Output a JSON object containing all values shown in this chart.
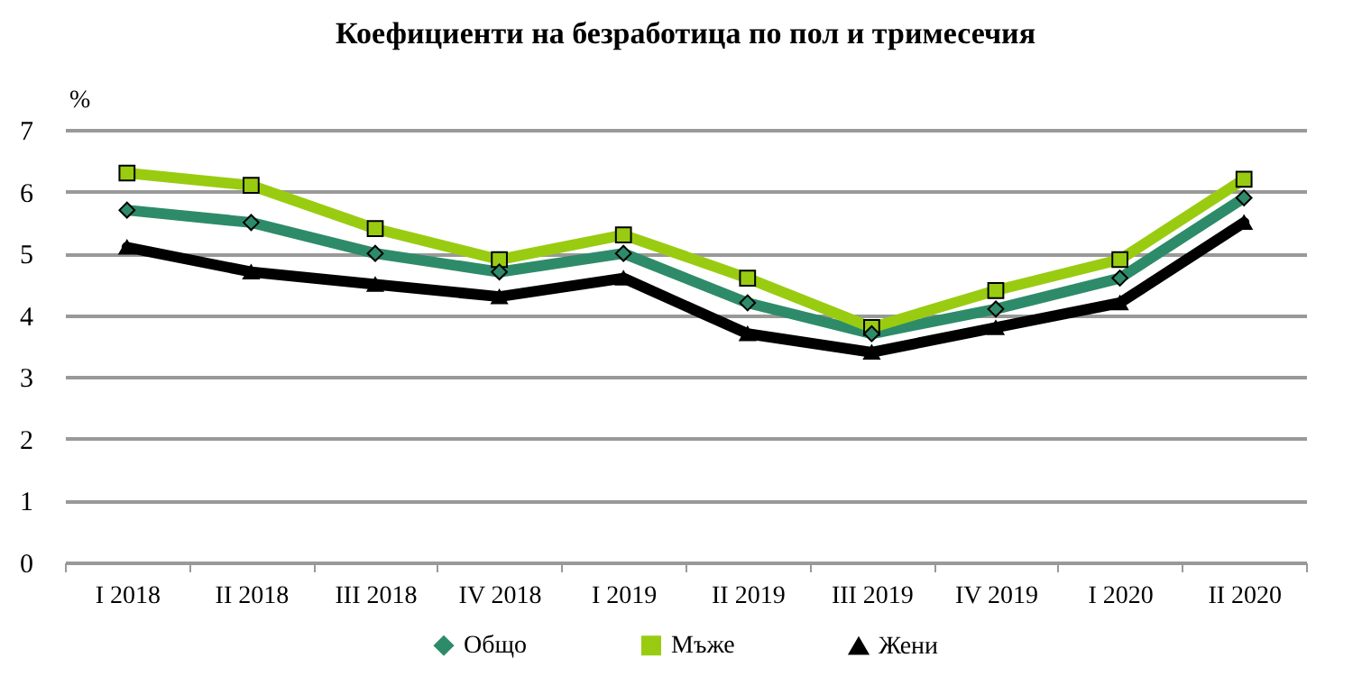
{
  "chart_data": {
    "type": "line",
    "title": "Коефициенти на безработица по пол и тримесечия",
    "ylabel": "%",
    "categories": [
      "I 2018",
      "II 2018",
      "III 2018",
      "IV 2018",
      "I 2019",
      "II 2019",
      "III 2019",
      "IV 2019",
      "I 2020",
      "II 2020"
    ],
    "series": [
      {
        "name": "Общо",
        "color": "#2e8b6a",
        "marker": "diamond",
        "values": [
          5.7,
          5.5,
          5.0,
          4.7,
          5.0,
          4.2,
          3.7,
          4.1,
          4.6,
          5.9
        ]
      },
      {
        "name": "Мъже",
        "color": "#99cc11",
        "marker": "square",
        "values": [
          6.3,
          6.1,
          5.4,
          4.9,
          5.3,
          4.6,
          3.8,
          4.4,
          4.9,
          6.2
        ]
      },
      {
        "name": "Жени",
        "color": "#000000",
        "marker": "triangle",
        "values": [
          5.1,
          4.7,
          4.5,
          4.3,
          4.6,
          3.7,
          3.4,
          3.8,
          4.2,
          5.5
        ]
      }
    ],
    "ylim": [
      0,
      7
    ],
    "yticks": [
      0,
      1,
      2,
      3,
      4,
      5,
      6,
      7
    ],
    "grid": "y",
    "legend": "bottom",
    "line_style": "solid"
  }
}
